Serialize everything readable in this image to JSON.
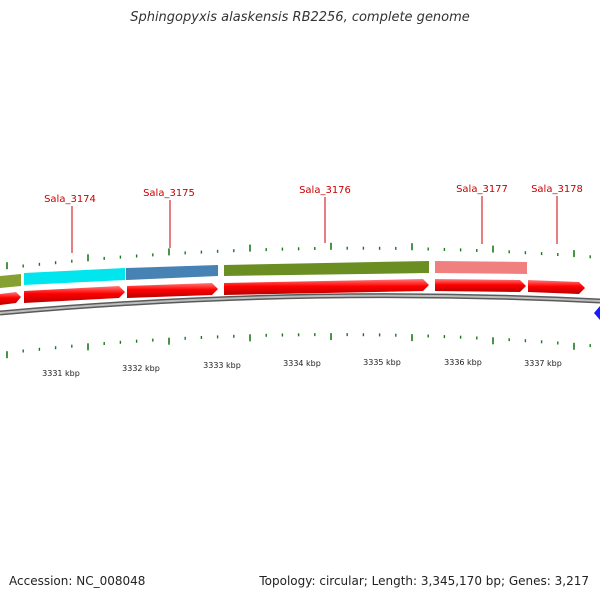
{
  "title": "Sphingopyxis alaskensis RB2256, complete genome",
  "footer": {
    "accession": "Accession: NC_008048",
    "topology": "Topology: circular; Length: 3,345,170 bp; Genes: 3,217"
  },
  "colors": {
    "cds": "#ff0000",
    "backbone": "#808080",
    "tick": "#1a7a1a",
    "gene_label": "#cc0000"
  },
  "gene_labels": [
    "Sala_3174",
    "Sala_3175",
    "Sala_3176",
    "Sala_3177",
    "Sala_3178"
  ],
  "kbp_labels": [
    "3331 kbp",
    "3332 kbp",
    "3333 kbp",
    "3334 kbp",
    "3335 kbp",
    "3336 kbp",
    "3337 kbp"
  ],
  "genes": [
    {
      "color": "#86a131"
    },
    {
      "color": "#00e5ee"
    },
    {
      "color": "#4682b4"
    },
    {
      "color": "#6b8e23"
    },
    {
      "color": "#f08080"
    }
  ]
}
